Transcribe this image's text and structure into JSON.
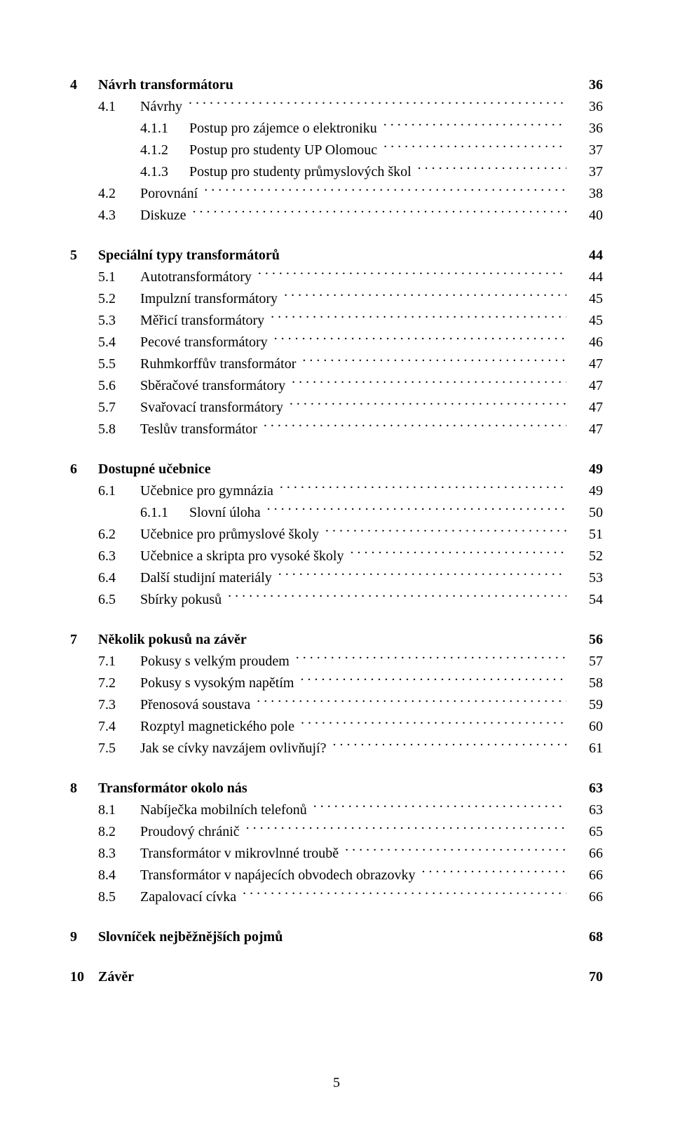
{
  "doc": {
    "page_number": "5",
    "font_family": "Times New Roman, serif",
    "text_color": "#000000",
    "background_color": "#ffffff"
  },
  "chapters": [
    {
      "num": "4",
      "title": "Návrh transformátoru",
      "page": "36",
      "sections": [
        {
          "num": "4.1",
          "title": "Návrhy",
          "page": "36",
          "subsections": [
            {
              "num": "4.1.1",
              "title": "Postup pro zájemce o elektroniku",
              "page": "36"
            },
            {
              "num": "4.1.2",
              "title": "Postup pro studenty UP Olomouc",
              "page": "37"
            },
            {
              "num": "4.1.3",
              "title": "Postup pro studenty průmyslových škol",
              "page": "37"
            }
          ]
        },
        {
          "num": "4.2",
          "title": "Porovnání",
          "page": "38"
        },
        {
          "num": "4.3",
          "title": "Diskuze",
          "page": "40"
        }
      ]
    },
    {
      "num": "5",
      "title": "Speciální typy transformátorů",
      "page": "44",
      "sections": [
        {
          "num": "5.1",
          "title": "Autotransformátory",
          "page": "44"
        },
        {
          "num": "5.2",
          "title": "Impulzní transformátory",
          "page": "45"
        },
        {
          "num": "5.3",
          "title": "Měřicí transformátory",
          "page": "45"
        },
        {
          "num": "5.4",
          "title": "Pecové transformátory",
          "page": "46"
        },
        {
          "num": "5.5",
          "title": "Ruhmkorffův transformátor",
          "page": "47"
        },
        {
          "num": "5.6",
          "title": "Sběračové transformátory",
          "page": "47"
        },
        {
          "num": "5.7",
          "title": "Svařovací transformátory",
          "page": "47"
        },
        {
          "num": "5.8",
          "title": "Teslův transformátor",
          "page": "47"
        }
      ]
    },
    {
      "num": "6",
      "title": "Dostupné učebnice",
      "page": "49",
      "sections": [
        {
          "num": "6.1",
          "title": "Učebnice pro gymnázia",
          "page": "49",
          "subsections": [
            {
              "num": "6.1.1",
              "title": "Slovní úloha",
              "page": "50"
            }
          ]
        },
        {
          "num": "6.2",
          "title": "Učebnice pro průmyslové školy",
          "page": "51"
        },
        {
          "num": "6.3",
          "title": "Učebnice a skripta pro vysoké školy",
          "page": "52"
        },
        {
          "num": "6.4",
          "title": "Další studijní materiály",
          "page": "53"
        },
        {
          "num": "6.5",
          "title": "Sbírky pokusů",
          "page": "54"
        }
      ]
    },
    {
      "num": "7",
      "title": "Několik pokusů na závěr",
      "page": "56",
      "sections": [
        {
          "num": "7.1",
          "title": "Pokusy s velkým proudem",
          "page": "57"
        },
        {
          "num": "7.2",
          "title": "Pokusy s vysokým napětím",
          "page": "58"
        },
        {
          "num": "7.3",
          "title": "Přenosová soustava",
          "page": "59"
        },
        {
          "num": "7.4",
          "title": "Rozptyl magnetického pole",
          "page": "60"
        },
        {
          "num": "7.5",
          "title": "Jak se cívky navzájem ovlivňují?",
          "page": "61"
        }
      ]
    },
    {
      "num": "8",
      "title": "Transformátor okolo nás",
      "page": "63",
      "sections": [
        {
          "num": "8.1",
          "title": "Nabíječka mobilních telefonů",
          "page": "63"
        },
        {
          "num": "8.2",
          "title": "Proudový chránič",
          "page": "65"
        },
        {
          "num": "8.3",
          "title": "Transformátor v mikrovlnné troubě",
          "page": "66"
        },
        {
          "num": "8.4",
          "title": "Transformátor v napájecích obvodech obrazovky",
          "page": "66"
        },
        {
          "num": "8.5",
          "title": "Zapalovací cívka",
          "page": "66"
        }
      ]
    },
    {
      "num": "9",
      "title": "Slovníček nejběžnějších pojmů",
      "page": "68",
      "sections": []
    },
    {
      "num": "10",
      "title": "Závěr",
      "page": "70",
      "sections": []
    }
  ]
}
